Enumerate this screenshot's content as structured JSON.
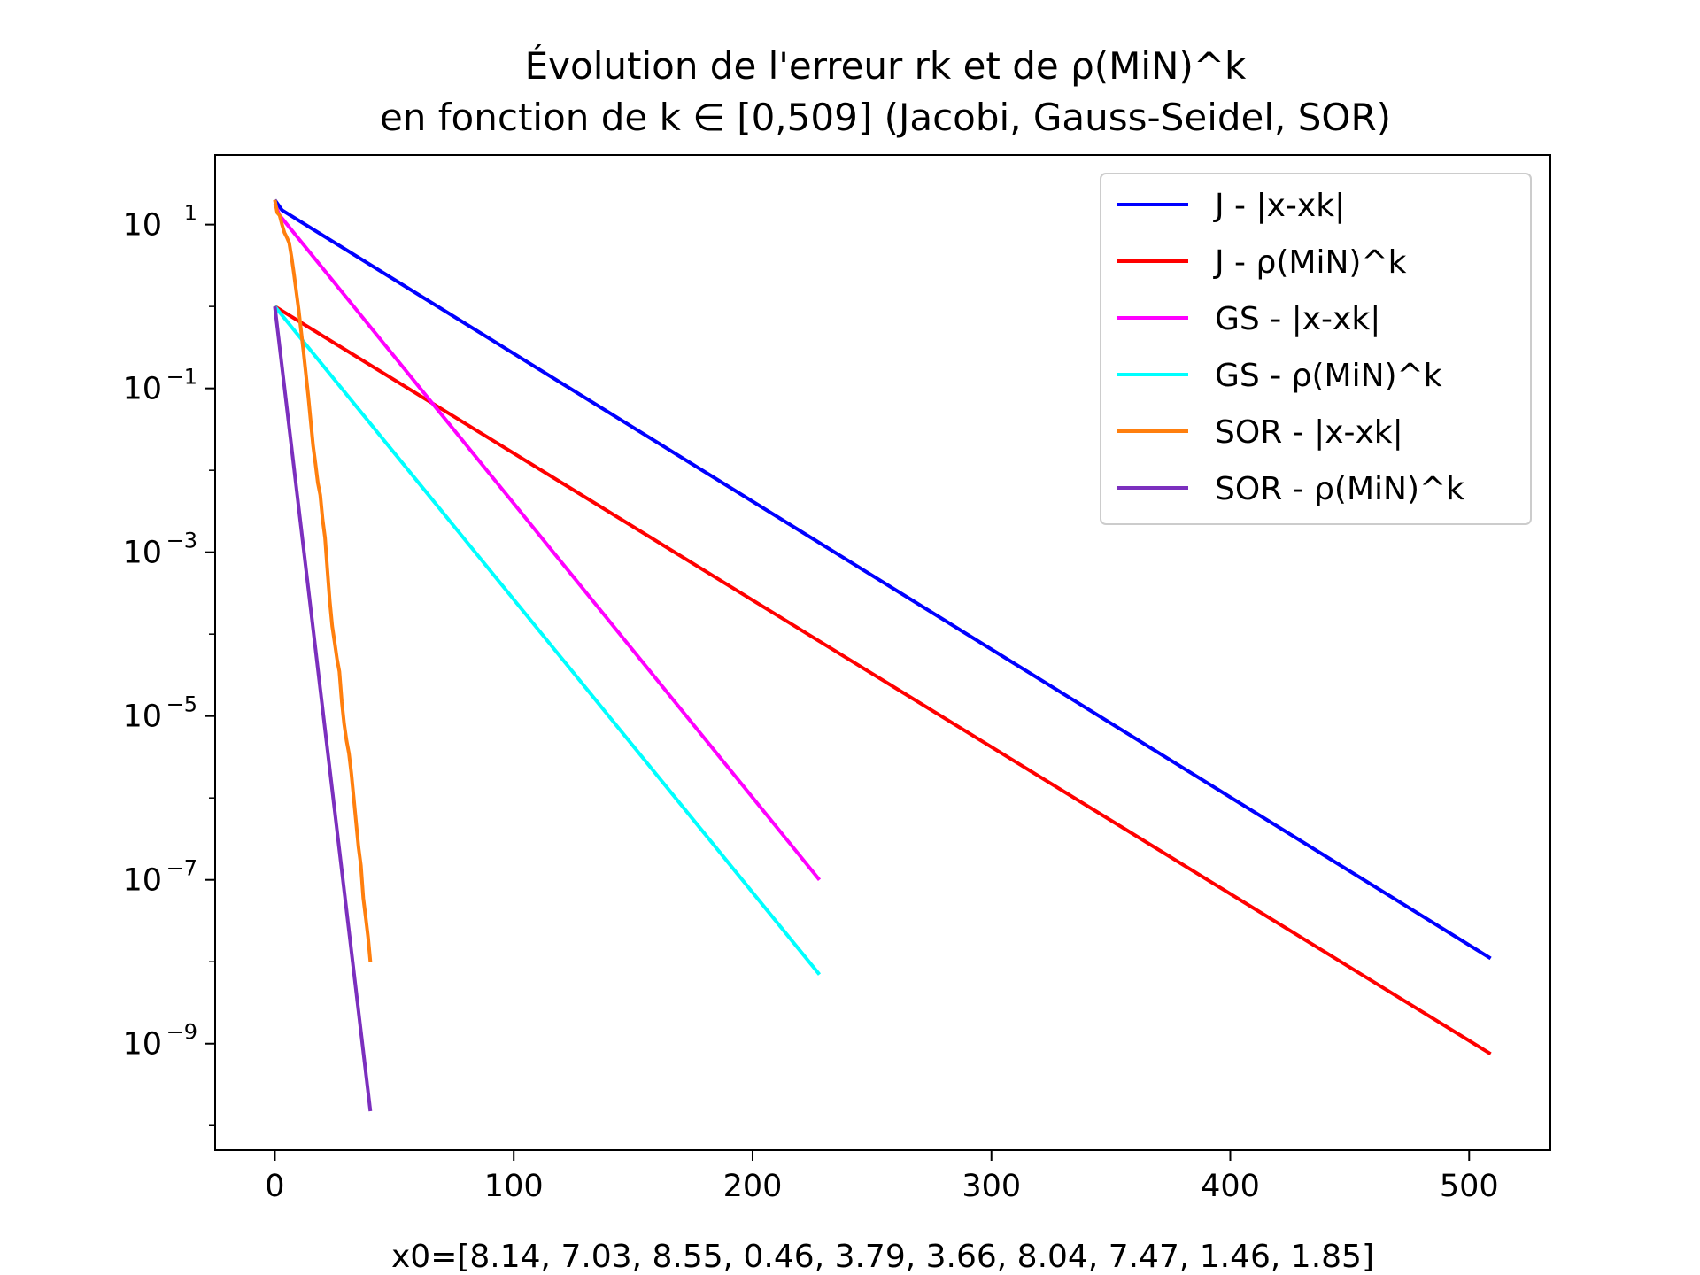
{
  "chart_data": {
    "type": "line",
    "title_line1": "Évolution de l'erreur rk et de ρ(MiN)^k",
    "title_line2": "en fonction de k ∈ [0,509] (Jacobi, Gauss-Seidel, SOR)",
    "xlabel": "x0=[8.14, 7.03, 8.55, 0.46, 3.79, 3.66, 8.04, 7.47, 1.46, 1.85]",
    "ylabel": "",
    "y_scale": "log",
    "xlim": [
      -25,
      534
    ],
    "ylim_log10": [
      -10.3,
      1.85
    ],
    "x_ticks": [
      {
        "value": 0,
        "label": "0"
      },
      {
        "value": 100,
        "label": "100"
      },
      {
        "value": 200,
        "label": "200"
      },
      {
        "value": 300,
        "label": "300"
      },
      {
        "value": 400,
        "label": "400"
      },
      {
        "value": 500,
        "label": "500"
      }
    ],
    "y_ticks": [
      {
        "exp": 1,
        "base": "10",
        "sup": "1"
      },
      {
        "exp": -1,
        "base": "10",
        "sup": "−1"
      },
      {
        "exp": -3,
        "base": "10",
        "sup": "−3"
      },
      {
        "exp": -5,
        "base": "10",
        "sup": "−5"
      },
      {
        "exp": -7,
        "base": "10",
        "sup": "−7"
      },
      {
        "exp": -9,
        "base": "10",
        "sup": "−9"
      }
    ],
    "grid": false,
    "legend_position": "top-right",
    "series": [
      {
        "name": "J - |x-xk|",
        "color": "#0000ff",
        "x": [
          0,
          3,
          509
        ],
        "y": [
          20,
          15,
          1.1e-08
        ]
      },
      {
        "name": "J - ρ(MiN)^k",
        "color": "#ff0000",
        "x": [
          0,
          509
        ],
        "y": [
          1,
          7.5e-10
        ]
      },
      {
        "name": "GS - |x-xk|",
        "color": "#ff00ff",
        "x": [
          0,
          2,
          228
        ],
        "y": [
          18,
          13,
          1e-07
        ]
      },
      {
        "name": "GS - ρ(MiN)^k",
        "color": "#00ffff",
        "x": [
          0,
          228
        ],
        "y": [
          1,
          7e-09
        ]
      },
      {
        "name": "SOR - |x-xk|",
        "color": "#ff7f0e",
        "x": [
          0,
          1,
          2,
          3,
          4,
          5,
          6,
          7,
          8,
          9,
          10,
          11,
          12,
          13,
          14,
          15,
          16,
          17,
          18,
          19,
          20,
          21,
          22,
          23,
          24,
          25,
          26,
          27,
          28,
          29,
          30,
          31,
          32,
          33,
          34,
          35,
          36,
          37,
          38,
          39,
          40
        ],
        "y": [
          20,
          14,
          13,
          10,
          8,
          7,
          6,
          4,
          2.5,
          1.5,
          0.9,
          0.5,
          0.28,
          0.15,
          0.08,
          0.04,
          0.02,
          0.012,
          0.007,
          0.005,
          0.0025,
          0.0015,
          0.0006,
          0.00025,
          0.000125,
          8e-05,
          5e-05,
          3.5e-05,
          1.5e-05,
          8e-06,
          5e-06,
          3.5e-06,
          2e-06,
          1e-06,
          5e-07,
          2.5e-07,
          1.5e-07,
          6e-08,
          3.5e-08,
          2e-08,
          1e-08
        ]
      },
      {
        "name": "SOR - ρ(MiN)^k",
        "color": "#7b2fbe",
        "x": [
          0,
          40
        ],
        "y": [
          1,
          1.5e-10
        ]
      }
    ]
  }
}
